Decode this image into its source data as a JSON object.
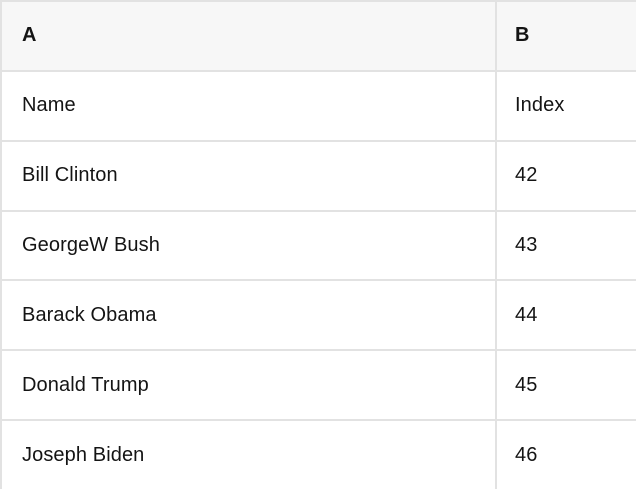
{
  "table": {
    "columns": [
      {
        "label": "A"
      },
      {
        "label": "B"
      }
    ],
    "rows": [
      {
        "a": "Name",
        "b": "Index"
      },
      {
        "a": "Bill Clinton",
        "b": "42"
      },
      {
        "a": "GeorgeW Bush",
        "b": "43"
      },
      {
        "a": "Barack Obama",
        "b": "44"
      },
      {
        "a": "Donald Trump",
        "b": "45"
      },
      {
        "a": "Joseph Biden",
        "b": "46"
      }
    ]
  },
  "colors": {
    "header_bg": "#f7f7f7",
    "border": "#e2e2e2",
    "text": "#141414"
  }
}
